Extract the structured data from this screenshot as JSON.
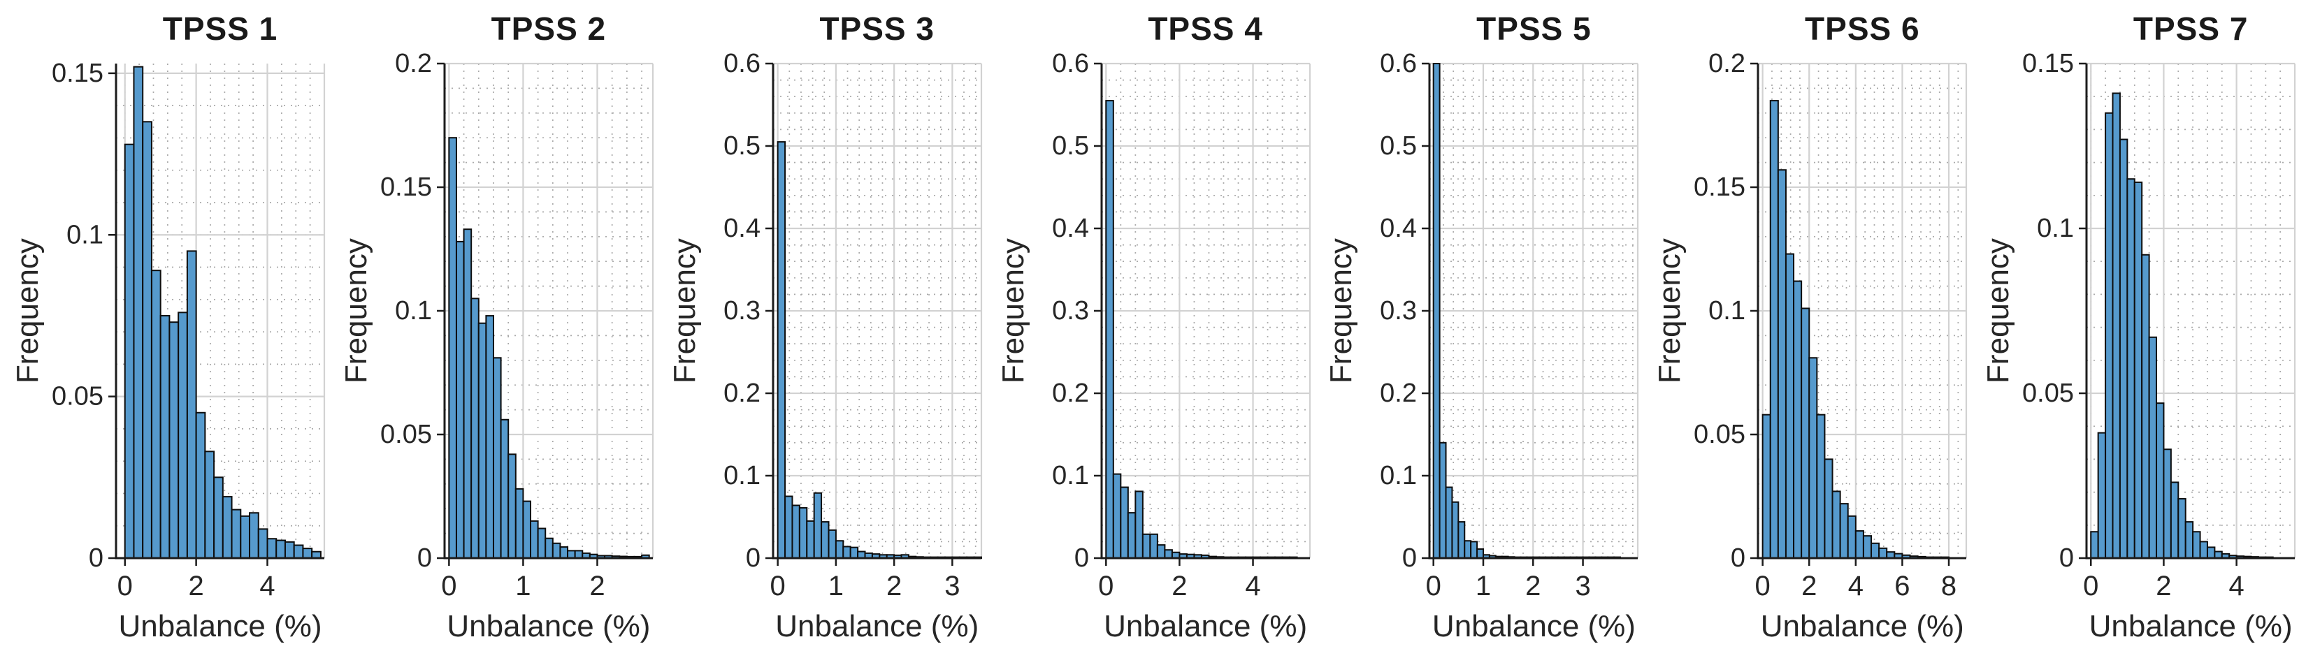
{
  "style": {
    "bar_fill": "#569ACD",
    "bar_edge": "#0d0d0d",
    "axis_color": "#1c1c1c",
    "major_grid": "#d2d2d2",
    "minor_grid": "#aaaaaa",
    "text_color": "#262626",
    "background": "#ffffff"
  },
  "chart_data": [
    {
      "type": "bar",
      "title": "TPSS 1",
      "xlabel": "Unbalance (%)",
      "ylabel": "Frequency",
      "bin_start": 0,
      "bin_width": 0.25,
      "values": [
        0.128,
        0.152,
        0.135,
        0.089,
        0.075,
        0.073,
        0.076,
        0.095,
        0.045,
        0.033,
        0.025,
        0.019,
        0.015,
        0.013,
        0.014,
        0.009,
        0.006,
        0.0055,
        0.005,
        0.004,
        0.003,
        0.002
      ],
      "xlim": [
        -0.25,
        5.6
      ],
      "ylim": [
        0,
        0.153
      ],
      "xticks": [
        0,
        2,
        4
      ],
      "yticks": [
        0,
        0.05,
        0.1,
        0.15
      ],
      "ytick_labels": [
        "0",
        "0.05",
        "0.1",
        "0.15"
      ],
      "xtick_minor": 0.4,
      "ytick_minor": 0.01,
      "grid": "major-solid minor-dotted",
      "legend": "none"
    },
    {
      "type": "bar",
      "title": "TPSS 2",
      "xlabel": "Unbalance (%)",
      "ylabel": "Frequency",
      "bin_start": 0,
      "bin_width": 0.1,
      "values": [
        0.17,
        0.128,
        0.133,
        0.105,
        0.095,
        0.098,
        0.081,
        0.056,
        0.042,
        0.028,
        0.023,
        0.015,
        0.012,
        0.008,
        0.006,
        0.0045,
        0.003,
        0.003,
        0.002,
        0.0015,
        0.001,
        0.001,
        0.0008,
        0.0007,
        0.0006,
        0.0006,
        0.0012
      ],
      "xlim": [
        -0.06,
        2.75
      ],
      "ylim": [
        0,
        0.2
      ],
      "xticks": [
        0,
        1,
        2
      ],
      "yticks": [
        0,
        0.05,
        0.1,
        0.15,
        0.2
      ],
      "ytick_labels": [
        "0",
        "0.05",
        "0.1",
        "0.15",
        "0.2"
      ],
      "xtick_minor": 0.2,
      "ytick_minor": 0.01,
      "grid": "major-solid minor-dotted",
      "legend": "none"
    },
    {
      "type": "bar",
      "title": "TPSS 3",
      "xlabel": "Unbalance (%)",
      "ylabel": "Frequency",
      "bin_start": 0,
      "bin_width": 0.125,
      "values": [
        0.505,
        0.075,
        0.064,
        0.061,
        0.045,
        0.079,
        0.044,
        0.034,
        0.021,
        0.014,
        0.013,
        0.008,
        0.006,
        0.005,
        0.004,
        0.004,
        0.0035,
        0.004,
        0.002,
        0.0015,
        0.001,
        0.001,
        0.0008,
        0.0006,
        0.0005,
        0.0004,
        0.0003,
        0.0003
      ],
      "xlim": [
        -0.08,
        3.5
      ],
      "ylim": [
        0,
        0.6
      ],
      "xticks": [
        0,
        1,
        2,
        3
      ],
      "yticks": [
        0,
        0.1,
        0.2,
        0.3,
        0.4,
        0.5,
        0.6
      ],
      "ytick_labels": [
        "0",
        "0.1",
        "0.2",
        "0.3",
        "0.4",
        "0.5",
        "0.6"
      ],
      "xtick_minor": 0.2,
      "ytick_minor": 0.02,
      "grid": "major-solid minor-dotted",
      "legend": "none"
    },
    {
      "type": "bar",
      "title": "TPSS 4",
      "xlabel": "Unbalance (%)",
      "ylabel": "Frequency",
      "bin_start": 0,
      "bin_width": 0.2,
      "values": [
        0.555,
        0.102,
        0.086,
        0.055,
        0.081,
        0.029,
        0.029,
        0.016,
        0.01,
        0.007,
        0.005,
        0.0045,
        0.004,
        0.0035,
        0.002,
        0.0015,
        0.001,
        0.0008,
        0.0006,
        0.0005,
        0.0004,
        0.0004,
        0.0003,
        0.0003,
        0.0002,
        0.0002
      ],
      "xlim": [
        -0.12,
        5.55
      ],
      "ylim": [
        0,
        0.6
      ],
      "xticks": [
        0,
        2,
        4
      ],
      "yticks": [
        0,
        0.1,
        0.2,
        0.3,
        0.4,
        0.5,
        0.6
      ],
      "ytick_labels": [
        "0",
        "0.1",
        "0.2",
        "0.3",
        "0.4",
        "0.5",
        "0.6"
      ],
      "xtick_minor": 0.4,
      "ytick_minor": 0.02,
      "grid": "major-solid minor-dotted",
      "legend": "none"
    },
    {
      "type": "bar",
      "title": "TPSS 5",
      "xlabel": "Unbalance (%)",
      "ylabel": "Frequency",
      "bin_start": 0,
      "bin_width": 0.125,
      "values": [
        0.6,
        0.14,
        0.086,
        0.068,
        0.044,
        0.021,
        0.02,
        0.011,
        0.004,
        0.003,
        0.002,
        0.002,
        0.0015,
        0.001,
        0.0008,
        0.0007,
        0.0006,
        0.0005,
        0.0005,
        0.0004,
        0.0004,
        0.0003,
        0.0003,
        0.0003,
        0.0002,
        0.0002,
        0.0002,
        0.0002,
        0.0001,
        0.0001
      ],
      "xlim": [
        -0.08,
        4.1
      ],
      "ylim": [
        0,
        0.6
      ],
      "xticks": [
        0,
        1,
        2,
        3
      ],
      "yticks": [
        0,
        0.1,
        0.2,
        0.3,
        0.4,
        0.5,
        0.6
      ],
      "ytick_labels": [
        "0",
        "0.1",
        "0.2",
        "0.3",
        "0.4",
        "0.5",
        "0.6"
      ],
      "xtick_minor": 0.2,
      "ytick_minor": 0.02,
      "grid": "major-solid minor-dotted",
      "legend": "none"
    },
    {
      "type": "bar",
      "title": "TPSS 6",
      "xlabel": "Unbalance (%)",
      "ylabel": "Frequency",
      "bin_start": 0,
      "bin_width": 0.3333,
      "values": [
        0.058,
        0.185,
        0.157,
        0.123,
        0.112,
        0.101,
        0.081,
        0.058,
        0.04,
        0.027,
        0.022,
        0.017,
        0.011,
        0.009,
        0.006,
        0.004,
        0.0025,
        0.0018,
        0.0012,
        0.0008,
        0.0006,
        0.0004,
        0.0003,
        0.0002
      ],
      "xlim": [
        -0.2,
        8.75
      ],
      "ylim": [
        0,
        0.2
      ],
      "xticks": [
        0,
        2,
        4,
        6,
        8
      ],
      "yticks": [
        0,
        0.05,
        0.1,
        0.15,
        0.2
      ],
      "ytick_labels": [
        "0",
        "0.05",
        "0.1",
        "0.15",
        "0.2"
      ],
      "xtick_minor": 0.4,
      "ytick_minor": 0.01,
      "grid": "major-solid minor-dotted",
      "legend": "none"
    },
    {
      "type": "bar",
      "title": "TPSS 7",
      "xlabel": "Unbalance (%)",
      "ylabel": "Frequency",
      "bin_start": 0,
      "bin_width": 0.2,
      "values": [
        0.008,
        0.038,
        0.135,
        0.141,
        0.127,
        0.115,
        0.114,
        0.092,
        0.067,
        0.047,
        0.033,
        0.023,
        0.018,
        0.011,
        0.008,
        0.005,
        0.0033,
        0.002,
        0.0013,
        0.0008,
        0.0006,
        0.0005,
        0.0004,
        0.0003,
        0.0002
      ],
      "xlim": [
        -0.12,
        5.6
      ],
      "ylim": [
        0,
        0.15
      ],
      "xticks": [
        0,
        2,
        4
      ],
      "yticks": [
        0,
        0.05,
        0.1,
        0.15
      ],
      "ytick_labels": [
        "0",
        "0.05",
        "0.1",
        "0.15"
      ],
      "xtick_minor": 0.4,
      "ytick_minor": 0.01,
      "grid": "major-solid minor-dotted",
      "legend": "none"
    }
  ]
}
